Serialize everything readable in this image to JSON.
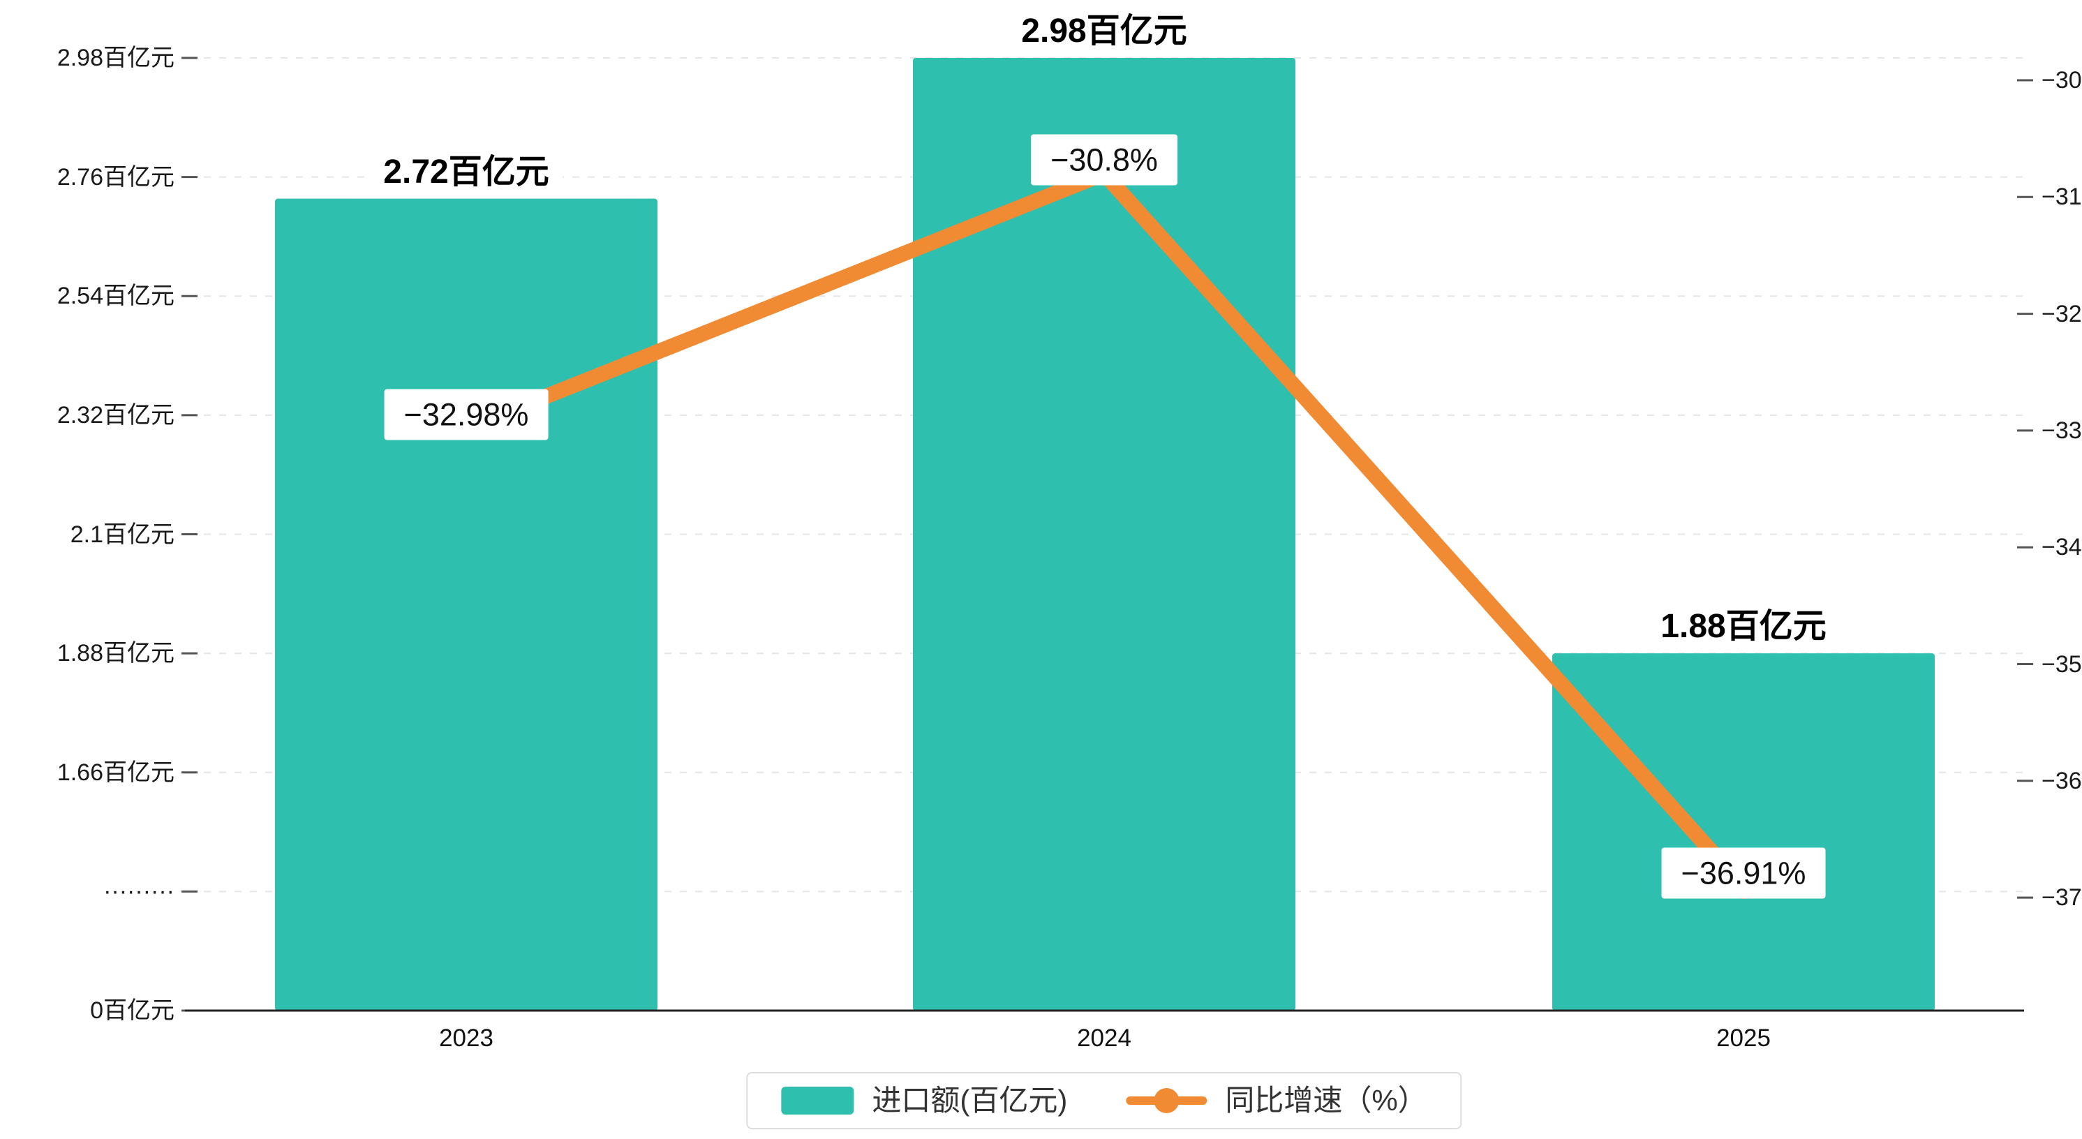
{
  "chart_data": {
    "type": "bar+line",
    "title": "",
    "xlabel": "",
    "ylabel_left": "百亿元",
    "ylabel_right": "%",
    "categories": [
      "2023",
      "2024",
      "2025"
    ],
    "series": [
      {
        "name": "进口额(百亿元)",
        "type": "bar",
        "axis": "left",
        "values": [
          2.72,
          2.98,
          1.88
        ],
        "labels": [
          "2.72百亿元",
          "2.98百亿元",
          "1.88百亿元"
        ],
        "color": "#2fbfaf"
      },
      {
        "name": "同比增速（%）",
        "type": "line",
        "axis": "right",
        "values": [
          -32.98,
          -30.8,
          -36.91
        ],
        "labels": [
          "−32.98%",
          "−30.8%",
          "−36.91%"
        ],
        "color": "#f08b33"
      }
    ],
    "left_axis": {
      "ticks": [
        "2.98百亿元",
        "2.76百亿元",
        "2.54百亿元",
        "2.32百亿元",
        "2.1百亿元",
        "1.88百亿元",
        "1.66百亿元",
        "·········",
        "0百亿元"
      ],
      "tick_values": [
        2.98,
        2.76,
        2.54,
        2.32,
        2.1,
        1.88,
        1.66,
        null,
        0
      ],
      "max": 2.98,
      "linear_min": 1.66,
      "step": 0.22,
      "axis_break": true
    },
    "right_axis": {
      "ticks": [
        "−30",
        "−31",
        "−32",
        "−33",
        "−34",
        "−35",
        "−36",
        "−37"
      ],
      "tick_values": [
        -30,
        -31,
        -32,
        -33,
        -34,
        -35,
        -36,
        -37
      ]
    },
    "grid": true,
    "legend_position": "bottom"
  },
  "legend": {
    "items": [
      {
        "label": "进口额(百亿元)",
        "color": "#2fbfaf",
        "type": "bar"
      },
      {
        "label": "同比增速（%）",
        "color": "#f08b33",
        "type": "line"
      }
    ]
  },
  "colors": {
    "bar": "#2fbfaf",
    "line": "#f08b33",
    "grid": "#e5e5e5",
    "axis": "#333333",
    "tick": "#555555",
    "text": "#111111",
    "label_bg": "#ffffff",
    "legend_border": "#dddddd"
  }
}
